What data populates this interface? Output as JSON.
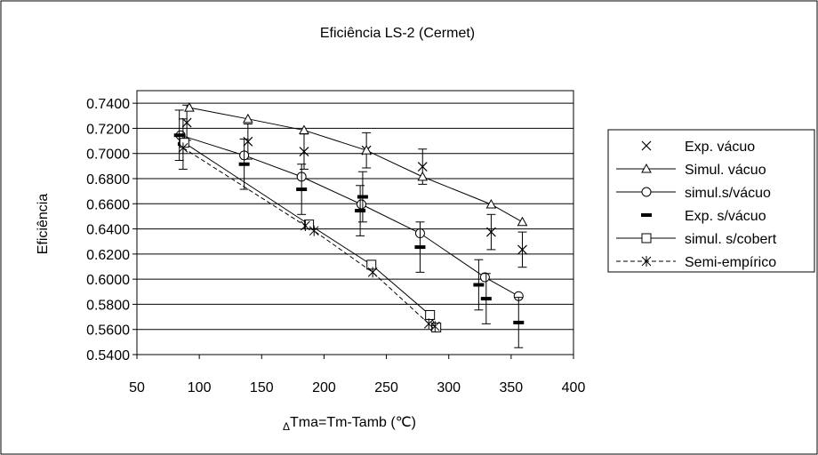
{
  "chart_data": {
    "type": "scatter",
    "title": "Eficiência LS-2 (Cermet)",
    "xlabel_symbol": "Δ",
    "xlabel": "Tma=Tm-Tamb (℃)",
    "ylabel": "Eficiência",
    "xlim": [
      50,
      400
    ],
    "ylim": [
      0.54,
      0.75
    ],
    "x_ticks": [
      "50",
      "100",
      "150",
      "200",
      "250",
      "300",
      "350",
      "400"
    ],
    "y_ticks": [
      "0.5400",
      "0.5600",
      "0.5800",
      "0.6000",
      "0.6200",
      "0.6400",
      "0.6600",
      "0.6800",
      "0.7000",
      "0.7200",
      "0.7400"
    ],
    "grid": "horizontal",
    "legend_position": "right",
    "series": [
      {
        "name": "Exp. vácuo",
        "marker": "x",
        "line": "none",
        "points": [
          [
            90,
            0.7245
          ],
          [
            139,
            0.7095
          ],
          [
            184,
            0.7015
          ],
          [
            234,
            0.7025
          ],
          [
            279,
            0.6895
          ],
          [
            334,
            0.6375
          ],
          [
            359,
            0.6235
          ]
        ],
        "error": 0.014
      },
      {
        "name": "Simul. vácuo",
        "marker": "triangle",
        "line": "solid",
        "points": [
          [
            92,
            0.7365
          ],
          [
            139,
            0.7275
          ],
          [
            184,
            0.7185
          ],
          [
            234,
            0.7025
          ],
          [
            279,
            0.6815
          ],
          [
            334,
            0.6595
          ],
          [
            359,
            0.6455
          ]
        ]
      },
      {
        "name": "simul.s/vácuo",
        "marker": "circle",
        "line": "solid",
        "points": [
          [
            85,
            0.7145
          ],
          [
            136,
            0.6985
          ],
          [
            182,
            0.6815
          ],
          [
            230,
            0.6595
          ],
          [
            277,
            0.6365
          ],
          [
            329,
            0.6015
          ],
          [
            356,
            0.5865
          ]
        ]
      },
      {
        "name": "Exp. s/vácuo",
        "marker": "dash",
        "line": "none",
        "points": [
          [
            84,
            0.7145
          ],
          [
            87,
            0.7075
          ],
          [
            136,
            0.6915
          ],
          [
            182,
            0.6715
          ],
          [
            229,
            0.6545
          ],
          [
            231,
            0.6655
          ],
          [
            277,
            0.6255
          ],
          [
            324,
            0.5955
          ],
          [
            330,
            0.5845
          ],
          [
            356,
            0.5655
          ]
        ],
        "error": 0.02
      },
      {
        "name": "simul. s/cobert",
        "marker": "square",
        "line": "solid",
        "points": [
          [
            88,
            0.7085
          ],
          [
            188,
            0.6435
          ],
          [
            238,
            0.6115
          ],
          [
            285,
            0.5715
          ],
          [
            290,
            0.5615
          ]
        ]
      },
      {
        "name": "Semi-empírico",
        "marker": "asterisk",
        "line": "dashed",
        "points": [
          [
            87,
            0.7045
          ],
          [
            185,
            0.6425
          ],
          [
            192,
            0.6385
          ],
          [
            239,
            0.6055
          ],
          [
            284,
            0.5645
          ],
          [
            289,
            0.5625
          ]
        ]
      }
    ]
  },
  "legend": {
    "items": [
      {
        "label": "Exp. vácuo"
      },
      {
        "label": "Simul. vácuo"
      },
      {
        "label": "simul.s/vácuo"
      },
      {
        "label": "Exp. s/vácuo"
      },
      {
        "label": "simul. s/cobert"
      },
      {
        "label": "Semi-empírico"
      }
    ]
  }
}
